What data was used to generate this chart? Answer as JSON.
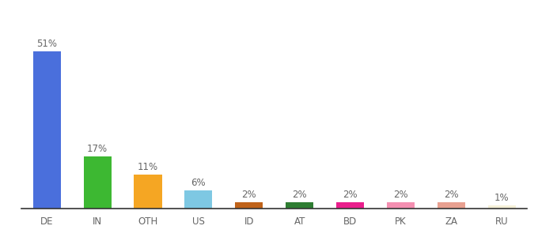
{
  "categories": [
    "DE",
    "IN",
    "OTH",
    "US",
    "ID",
    "AT",
    "BD",
    "PK",
    "ZA",
    "RU"
  ],
  "values": [
    51,
    17,
    11,
    6,
    2,
    2,
    2,
    2,
    2,
    1
  ],
  "bar_colors": [
    "#4a6fdc",
    "#3db832",
    "#f5a623",
    "#7ec8e3",
    "#c0631a",
    "#2e7d32",
    "#e91e8c",
    "#f48fb1",
    "#e8a090",
    "#f5f0d8"
  ],
  "ylim": [
    0,
    60
  ],
  "label_color": "#666666",
  "background_color": "#ffffff",
  "label_fontsize": 8.5,
  "tick_fontsize": 8.5,
  "bar_width": 0.55
}
